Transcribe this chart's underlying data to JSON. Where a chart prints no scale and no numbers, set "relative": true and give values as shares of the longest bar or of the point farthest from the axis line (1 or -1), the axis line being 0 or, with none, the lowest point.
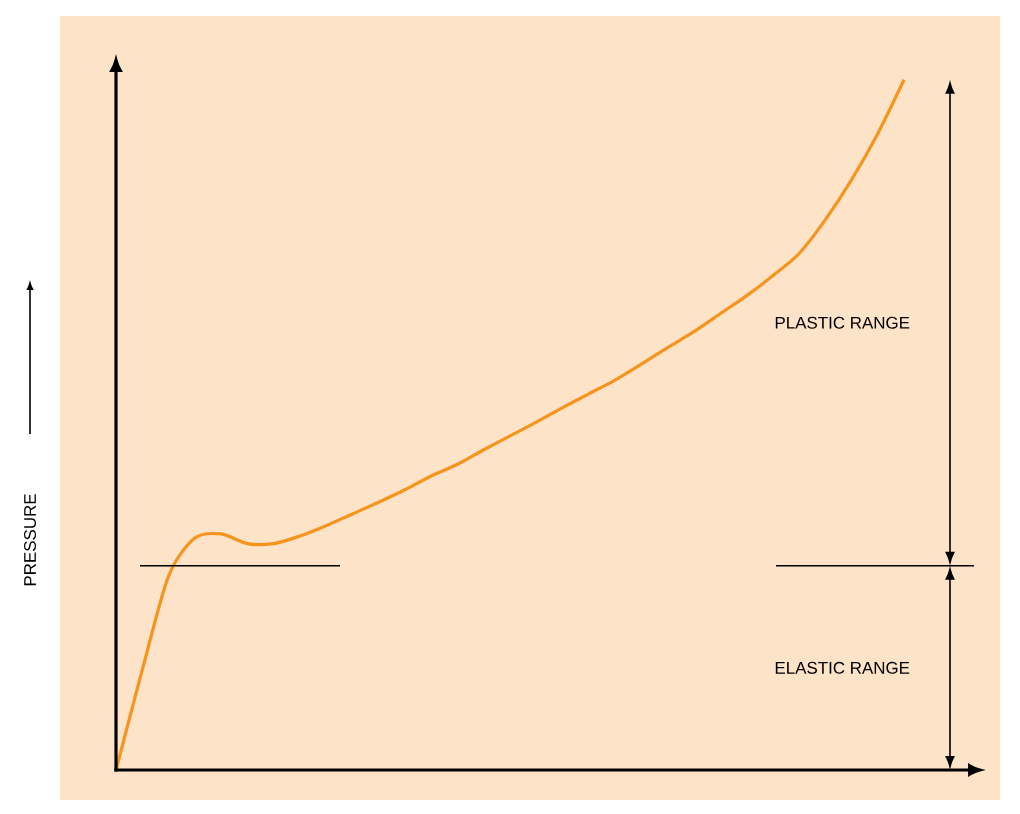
{
  "chart_data": {
    "type": "line",
    "ylabel": "PRESSURE",
    "color": "#f7941d",
    "relative": true,
    "categories": [
      null,
      null,
      null,
      null,
      null,
      null,
      null,
      null,
      null,
      null,
      null,
      null,
      null,
      null,
      null,
      null,
      null,
      null,
      null,
      null,
      null,
      null,
      null,
      null,
      null,
      null,
      null,
      null,
      null,
      null,
      null
    ],
    "values": [
      0,
      0.145,
      0.281,
      0.336,
      0.342,
      0.328,
      0.328,
      0.339,
      0.354,
      0.371,
      0.388,
      0.406,
      0.426,
      0.443,
      0.464,
      0.484,
      0.504,
      0.525,
      0.545,
      0.565,
      0.588,
      0.612,
      0.635,
      0.661,
      0.687,
      0.716,
      0.748,
      0.797,
      0.855,
      0.922,
      1
    ],
    "ref_lines": [
      {
        "axis": "y",
        "value": 0.296
      }
    ],
    "annotations": [
      "PLASTIC RANGE",
      "ELASTIC RANGE"
    ]
  }
}
